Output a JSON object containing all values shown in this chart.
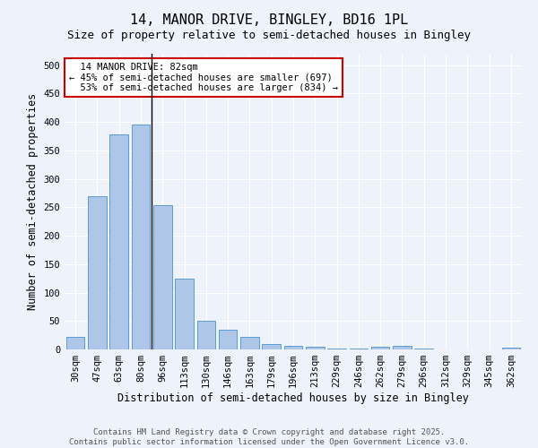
{
  "title1": "14, MANOR DRIVE, BINGLEY, BD16 1PL",
  "title2": "Size of property relative to semi-detached houses in Bingley",
  "xlabel": "Distribution of semi-detached houses by size in Bingley",
  "ylabel": "Number of semi-detached properties",
  "categories": [
    "30sqm",
    "47sqm",
    "63sqm",
    "80sqm",
    "96sqm",
    "113sqm",
    "130sqm",
    "146sqm",
    "163sqm",
    "179sqm",
    "196sqm",
    "213sqm",
    "229sqm",
    "246sqm",
    "262sqm",
    "279sqm",
    "296sqm",
    "312sqm",
    "329sqm",
    "345sqm",
    "362sqm"
  ],
  "values": [
    22,
    270,
    378,
    395,
    253,
    125,
    50,
    35,
    22,
    10,
    7,
    5,
    2,
    1,
    5,
    7,
    1,
    0,
    0,
    0,
    3
  ],
  "bar_color": "#aec6e8",
  "bar_edge_color": "#5b9bd5",
  "subject_bin_index": 3,
  "subject_label": "14 MANOR DRIVE: 82sqm",
  "smaller_pct": "45% of semi-detached houses are smaller (697)",
  "larger_pct": "53% of semi-detached houses are larger (834)",
  "annotation_box_color": "#cc0000",
  "ylim": [
    0,
    520
  ],
  "yticks": [
    0,
    50,
    100,
    150,
    200,
    250,
    300,
    350,
    400,
    450,
    500
  ],
  "footnote1": "Contains HM Land Registry data © Crown copyright and database right 2025.",
  "footnote2": "Contains public sector information licensed under the Open Government Licence v3.0.",
  "bg_color": "#eef2fb",
  "plot_bg_color": "#eef2fb",
  "title1_fontsize": 11,
  "title2_fontsize": 9,
  "axis_label_fontsize": 8.5,
  "tick_fontsize": 7.5,
  "annotation_fontsize": 7.5,
  "footnote_fontsize": 6.5
}
